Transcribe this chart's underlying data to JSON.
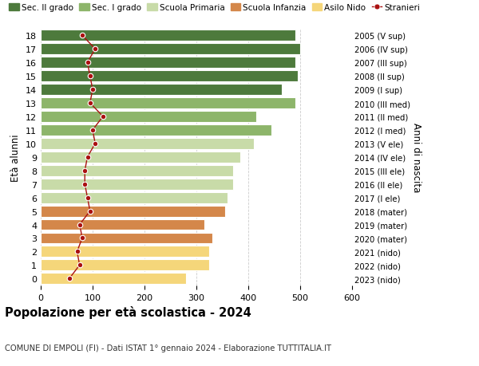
{
  "ages": [
    0,
    1,
    2,
    3,
    4,
    5,
    6,
    7,
    8,
    9,
    10,
    11,
    12,
    13,
    14,
    15,
    16,
    17,
    18
  ],
  "bar_values": [
    280,
    325,
    325,
    330,
    315,
    355,
    360,
    370,
    370,
    385,
    410,
    445,
    415,
    490,
    465,
    495,
    490,
    500,
    490
  ],
  "stranieri": [
    55,
    75,
    70,
    80,
    75,
    95,
    90,
    85,
    85,
    90,
    105,
    100,
    120,
    95,
    100,
    95,
    90,
    105,
    80
  ],
  "right_labels": [
    "2023 (nido)",
    "2022 (nido)",
    "2021 (nido)",
    "2020 (mater)",
    "2019 (mater)",
    "2018 (mater)",
    "2017 (I ele)",
    "2016 (II ele)",
    "2015 (III ele)",
    "2014 (IV ele)",
    "2013 (V ele)",
    "2012 (I med)",
    "2011 (II med)",
    "2010 (III med)",
    "2009 (I sup)",
    "2008 (II sup)",
    "2007 (III sup)",
    "2006 (IV sup)",
    "2005 (V sup)"
  ],
  "bar_colors": [
    "#f5d67a",
    "#f5d67a",
    "#f5d67a",
    "#d4874a",
    "#d4874a",
    "#d4874a",
    "#c8dba8",
    "#c8dba8",
    "#c8dba8",
    "#c8dba8",
    "#c8dba8",
    "#8db56a",
    "#8db56a",
    "#8db56a",
    "#4d7a3c",
    "#4d7a3c",
    "#4d7a3c",
    "#4d7a3c",
    "#4d7a3c"
  ],
  "legend_labels": [
    "Sec. II grado",
    "Sec. I grado",
    "Scuola Primaria",
    "Scuola Infanzia",
    "Asilo Nido",
    "Stranieri"
  ],
  "legend_colors": [
    "#4d7a3c",
    "#8db56a",
    "#c8dba8",
    "#d4874a",
    "#f5d67a",
    "#aa1111"
  ],
  "title": "Popolazione per età scolastica - 2024",
  "subtitle": "COMUNE DI EMPOLI (FI) - Dati ISTAT 1° gennaio 2024 - Elaborazione TUTTITALIA.IT",
  "ylabel_left": "Età alunni",
  "ylabel_right": "Anni di nascita",
  "xlim": [
    0,
    600
  ],
  "xticks": [
    0,
    100,
    200,
    300,
    400,
    500,
    600
  ],
  "stranieri_color": "#aa1111",
  "background_color": "#ffffff",
  "grid_color": "#cccccc"
}
